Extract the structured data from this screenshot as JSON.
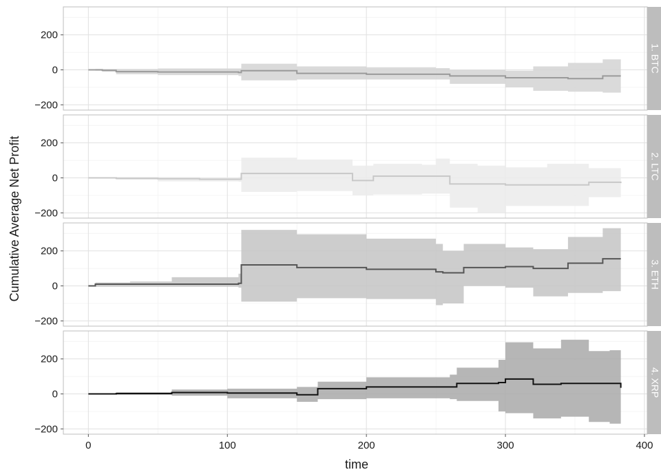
{
  "chart_data": {
    "type": "line",
    "xlabel": "time",
    "ylabel": "Cumulative Average Net Profit",
    "xlim": [
      -18,
      402
    ],
    "ylim": [
      -230,
      360
    ],
    "x_ticks": [
      0,
      100,
      200,
      300,
      400
    ],
    "y_ticks": [
      -200,
      0,
      200
    ],
    "grid": true,
    "panels": [
      {
        "strip": "1. BTC",
        "line_color": "#9a9a9a",
        "band_color": "#d3d3d3",
        "series": [
          {
            "x": 0,
            "mean": 0,
            "lo": 0,
            "hi": 0
          },
          {
            "x": 5,
            "mean": 0,
            "lo": -5,
            "hi": 5
          },
          {
            "x": 10,
            "mean": -3,
            "lo": -10,
            "hi": 5
          },
          {
            "x": 20,
            "mean": -10,
            "lo": -25,
            "hi": 5
          },
          {
            "x": 50,
            "mean": -12,
            "lo": -30,
            "hi": 8
          },
          {
            "x": 90,
            "mean": -12,
            "lo": -30,
            "hi": 8
          },
          {
            "x": 108,
            "mean": -15,
            "lo": -35,
            "hi": 8
          },
          {
            "x": 110,
            "mean": -5,
            "lo": -60,
            "hi": 35
          },
          {
            "x": 150,
            "mean": -20,
            "lo": -55,
            "hi": 20
          },
          {
            "x": 200,
            "mean": -25,
            "lo": -55,
            "hi": 15
          },
          {
            "x": 250,
            "mean": -25,
            "lo": -55,
            "hi": 10
          },
          {
            "x": 260,
            "mean": -35,
            "lo": -80,
            "hi": 0
          },
          {
            "x": 300,
            "mean": -45,
            "lo": -100,
            "hi": -5
          },
          {
            "x": 320,
            "mean": -45,
            "lo": -120,
            "hi": 20
          },
          {
            "x": 345,
            "mean": -50,
            "lo": -125,
            "hi": 40
          },
          {
            "x": 370,
            "mean": -35,
            "lo": -130,
            "hi": 60
          },
          {
            "x": 383,
            "mean": -35,
            "lo": -130,
            "hi": 60
          }
        ]
      },
      {
        "strip": "2. LTC",
        "line_color": "#c8c8c8",
        "band_color": "#ebebeb",
        "series": [
          {
            "x": 0,
            "mean": 0,
            "lo": 0,
            "hi": 0
          },
          {
            "x": 20,
            "mean": -3,
            "lo": -10,
            "hi": 5
          },
          {
            "x": 50,
            "mean": -5,
            "lo": -20,
            "hi": 5
          },
          {
            "x": 80,
            "mean": -8,
            "lo": -20,
            "hi": 3
          },
          {
            "x": 108,
            "mean": -8,
            "lo": -22,
            "hi": 5
          },
          {
            "x": 110,
            "mean": 25,
            "lo": -80,
            "hi": 115
          },
          {
            "x": 150,
            "mean": 25,
            "lo": -75,
            "hi": 105
          },
          {
            "x": 190,
            "mean": -15,
            "lo": -100,
            "hi": 70
          },
          {
            "x": 205,
            "mean": 10,
            "lo": -95,
            "hi": 80
          },
          {
            "x": 240,
            "mean": 10,
            "lo": -90,
            "hi": 75
          },
          {
            "x": 250,
            "mean": 10,
            "lo": -90,
            "hi": 110
          },
          {
            "x": 260,
            "mean": -35,
            "lo": -170,
            "hi": 80
          },
          {
            "x": 280,
            "mean": -35,
            "lo": -200,
            "hi": 70
          },
          {
            "x": 300,
            "mean": -40,
            "lo": -160,
            "hi": 60
          },
          {
            "x": 330,
            "mean": -40,
            "lo": -160,
            "hi": 80
          },
          {
            "x": 360,
            "mean": -25,
            "lo": -110,
            "hi": 55
          },
          {
            "x": 383,
            "mean": -30,
            "lo": -120,
            "hi": 45
          }
        ]
      },
      {
        "strip": "3. ETH",
        "line_color": "#555555",
        "band_color": "#c4c4c4",
        "series": [
          {
            "x": 0,
            "mean": 0,
            "lo": 0,
            "hi": 0
          },
          {
            "x": 5,
            "mean": 10,
            "lo": -5,
            "hi": 20
          },
          {
            "x": 30,
            "mean": 10,
            "lo": -5,
            "hi": 25
          },
          {
            "x": 60,
            "mean": 10,
            "lo": -5,
            "hi": 50
          },
          {
            "x": 108,
            "mean": 15,
            "lo": -10,
            "hi": 70
          },
          {
            "x": 110,
            "mean": 120,
            "lo": -90,
            "hi": 320
          },
          {
            "x": 150,
            "mean": 105,
            "lo": -70,
            "hi": 295
          },
          {
            "x": 200,
            "mean": 95,
            "lo": -75,
            "hi": 270
          },
          {
            "x": 250,
            "mean": 80,
            "lo": -110,
            "hi": 240
          },
          {
            "x": 255,
            "mean": 75,
            "lo": -100,
            "hi": 200
          },
          {
            "x": 270,
            "mean": 105,
            "lo": 0,
            "hi": 240
          },
          {
            "x": 300,
            "mean": 110,
            "lo": -10,
            "hi": 220
          },
          {
            "x": 320,
            "mean": 100,
            "lo": -60,
            "hi": 210
          },
          {
            "x": 345,
            "mean": 130,
            "lo": -40,
            "hi": 280
          },
          {
            "x": 370,
            "mean": 155,
            "lo": -30,
            "hi": 330
          },
          {
            "x": 383,
            "mean": 155,
            "lo": -30,
            "hi": 335
          }
        ]
      },
      {
        "strip": "4. XRP",
        "line_color": "#111111",
        "band_color": "#a9a9a9",
        "series": [
          {
            "x": 0,
            "mean": 0,
            "lo": 0,
            "hi": 0
          },
          {
            "x": 20,
            "mean": 2,
            "lo": -5,
            "hi": 10
          },
          {
            "x": 60,
            "mean": 8,
            "lo": -10,
            "hi": 25
          },
          {
            "x": 100,
            "mean": 5,
            "lo": -25,
            "hi": 30
          },
          {
            "x": 150,
            "mean": -5,
            "lo": -45,
            "hi": 40
          },
          {
            "x": 165,
            "mean": 30,
            "lo": -30,
            "hi": 70
          },
          {
            "x": 200,
            "mean": 40,
            "lo": -25,
            "hi": 95
          },
          {
            "x": 260,
            "mean": 40,
            "lo": -30,
            "hi": 110
          },
          {
            "x": 265,
            "mean": 60,
            "lo": -40,
            "hi": 150
          },
          {
            "x": 295,
            "mean": 65,
            "lo": -100,
            "hi": 195
          },
          {
            "x": 300,
            "mean": 85,
            "lo": -110,
            "hi": 295
          },
          {
            "x": 320,
            "mean": 55,
            "lo": -140,
            "hi": 260
          },
          {
            "x": 340,
            "mean": 60,
            "lo": -130,
            "hi": 310
          },
          {
            "x": 360,
            "mean": 60,
            "lo": -160,
            "hi": 245
          },
          {
            "x": 375,
            "mean": 60,
            "lo": -170,
            "hi": 250
          },
          {
            "x": 383,
            "mean": 35,
            "lo": -170,
            "hi": 250
          }
        ]
      }
    ]
  }
}
